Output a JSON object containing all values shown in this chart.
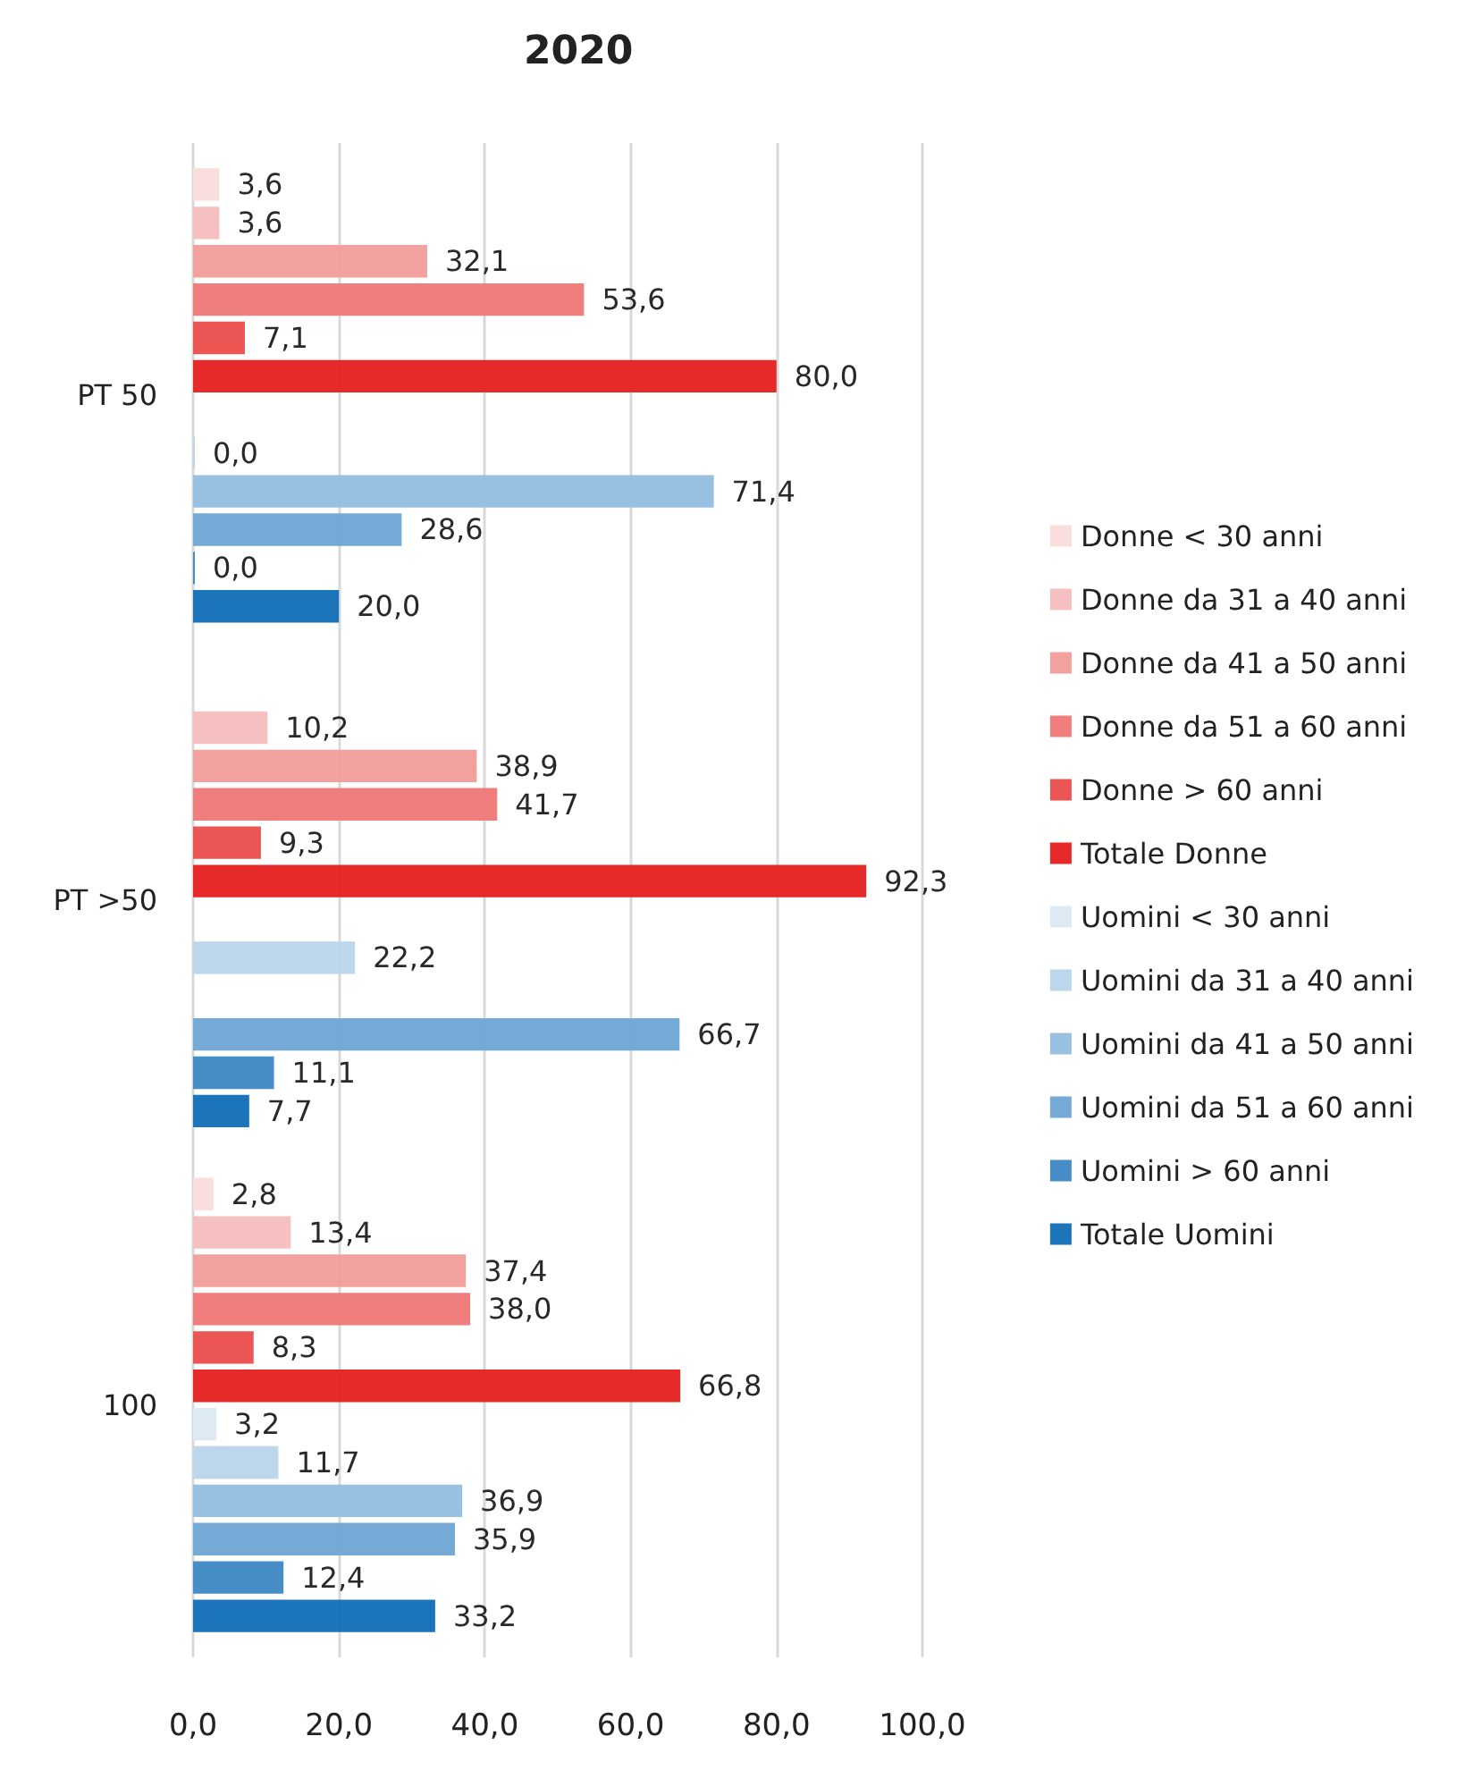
{
  "chart_data": {
    "type": "bar",
    "orientation": "horizontal",
    "title": "2020",
    "categories": [
      "PT 50",
      "PT >50",
      "100"
    ],
    "series": [
      {
        "name": "Donne < 30 anni",
        "color": "#fadcdc",
        "values": [
          3.6,
          null,
          2.8
        ],
        "value_labels": [
          "3,6",
          null,
          "2,8"
        ]
      },
      {
        "name": "Donne da 31 a 40 anni",
        "color": "#f7bebe",
        "values": [
          3.6,
          10.2,
          13.4
        ],
        "value_labels": [
          "3,6",
          "10,2",
          "13,4"
        ]
      },
      {
        "name": "Donne da 41 a 50 anni",
        "color": "#f29e9b",
        "values": [
          32.1,
          38.9,
          37.4
        ],
        "value_labels": [
          "32,1",
          "38,9",
          "37,4"
        ]
      },
      {
        "name": "Donne da 51 a 60 anni",
        "color": "#ef7a78",
        "values": [
          53.6,
          41.7,
          38.0
        ],
        "value_labels": [
          "53,6",
          "41,7",
          "38,0"
        ]
      },
      {
        "name": "Donne > 60 anni",
        "color": "#ea4f4d",
        "values": [
          7.1,
          9.3,
          8.3
        ],
        "value_labels": [
          "7,1",
          "9,3",
          "8,3"
        ]
      },
      {
        "name": "Totale Donne",
        "color": "#e52322",
        "values": [
          80.0,
          92.3,
          66.8
        ],
        "value_labels": [
          "80,0",
          "92,3",
          "66,8"
        ]
      },
      {
        "name": "Uomini < 30 anni",
        "color": "#dce9f4",
        "values": [
          null,
          null,
          3.2
        ],
        "value_labels": [
          null,
          null,
          "3,2"
        ]
      },
      {
        "name": "Uomini da 31 a 40 anni",
        "color": "#bad5ea",
        "values": [
          0.0,
          22.2,
          11.7
        ],
        "value_labels": [
          "0,0",
          "22,2",
          "11,7"
        ]
      },
      {
        "name": "Uomini da 41 a 50 anni",
        "color": "#95bedf",
        "values": [
          71.4,
          null,
          36.9
        ],
        "value_labels": [
          "71,4",
          null,
          "36,9"
        ]
      },
      {
        "name": "Uomini da 51 a 60 anni",
        "color": "#70a7d4",
        "values": [
          28.6,
          66.7,
          35.9
        ],
        "value_labels": [
          "28,6",
          "66,7",
          "35,9"
        ]
      },
      {
        "name": "Uomini > 60 anni",
        "color": "#418ac6",
        "values": [
          0.0,
          11.1,
          12.4
        ],
        "value_labels": [
          "0,0",
          "11,1",
          "12,4"
        ]
      },
      {
        "name": "Totale Uomini",
        "color": "#1570b8",
        "values": [
          20.0,
          7.7,
          33.2
        ],
        "value_labels": [
          "20,0",
          "7,7",
          "33,2"
        ]
      }
    ],
    "xlim": [
      0,
      100
    ],
    "xticks": [
      {
        "value": 0,
        "label": "0,0"
      },
      {
        "value": 20,
        "label": "20,0"
      },
      {
        "value": 40,
        "label": "40,0"
      },
      {
        "value": 60,
        "label": "60,0"
      },
      {
        "value": 80,
        "label": "80,0"
      },
      {
        "value": 100,
        "label": "100,0"
      }
    ],
    "grid": "x",
    "legend": "right"
  }
}
